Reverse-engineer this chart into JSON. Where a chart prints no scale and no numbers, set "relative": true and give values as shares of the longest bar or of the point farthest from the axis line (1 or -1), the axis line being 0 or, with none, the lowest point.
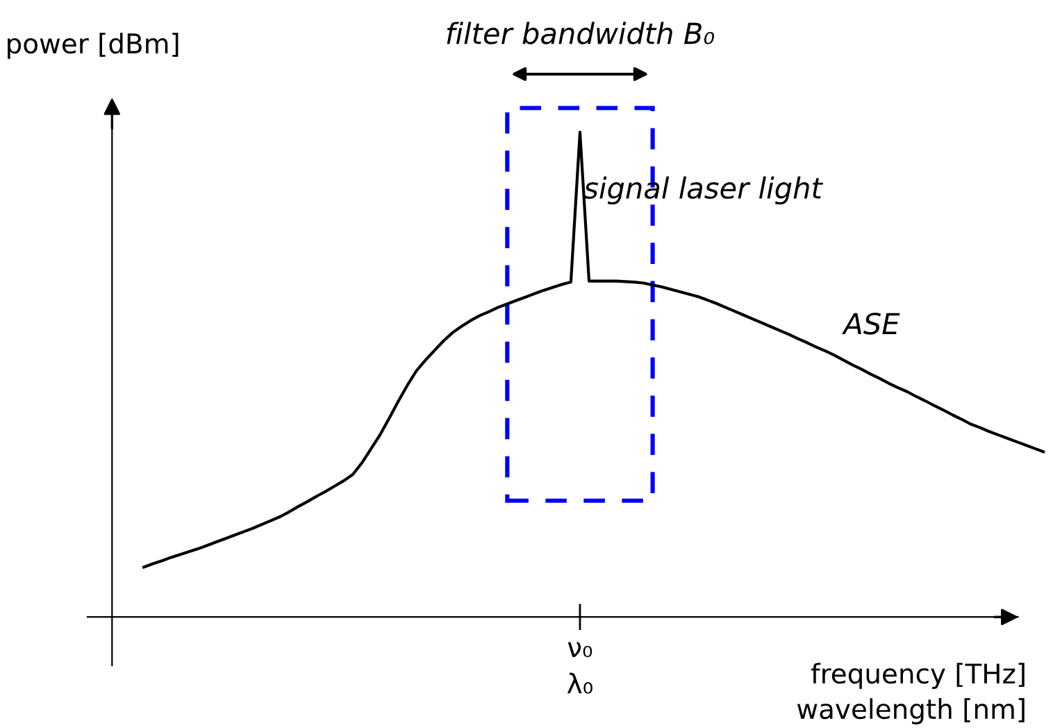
{
  "chart_data": {
    "type": "line",
    "relative": true,
    "xlabel": "frequency [THz]\nwavelength [nm]",
    "ylabel": "power [dBm]",
    "categories": [
      null,
      null,
      null,
      null,
      null,
      null,
      null,
      null,
      null,
      null,
      null,
      null,
      null,
      null,
      null,
      null,
      null,
      null,
      null,
      null,
      null,
      null,
      null,
      null,
      null,
      null,
      null,
      null,
      null,
      null,
      null,
      null,
      null,
      null,
      null,
      null,
      null,
      null,
      null,
      null,
      null,
      null,
      null,
      null,
      null,
      null,
      null,
      null,
      null,
      null,
      null,
      null,
      null,
      null,
      null,
      null,
      null,
      null,
      null,
      null,
      null,
      null,
      null,
      null,
      null,
      null,
      null,
      null,
      null,
      null,
      null,
      null,
      null,
      null,
      null,
      null,
      null,
      null,
      null,
      null,
      null,
      null,
      null,
      null,
      null,
      null,
      null,
      null,
      null,
      null,
      null,
      null,
      null,
      null,
      null,
      null,
      null,
      null,
      null,
      null
    ],
    "series": [
      {
        "color": "#000000",
        "values": [
          0.103,
          0.11,
          0.116,
          0.123,
          0.129,
          0.135,
          0.141,
          0.148,
          0.155,
          0.162,
          0.169,
          0.176,
          0.183,
          0.191,
          0.199,
          0.207,
          0.217,
          0.228,
          0.238,
          0.249,
          0.259,
          0.27,
          0.281,
          0.294,
          0.318,
          0.347,
          0.376,
          0.41,
          0.445,
          0.478,
          0.508,
          0.53,
          0.55,
          0.57,
          0.587,
          0.6,
          0.612,
          0.622,
          0.63,
          0.639,
          0.646,
          0.653,
          0.66,
          0.667,
          0.674,
          0.68,
          0.686,
          0.691,
          1.0,
          0.693,
          0.693,
          0.693,
          0.693,
          0.692,
          0.691,
          0.689,
          0.685,
          0.681,
          0.676,
          0.671,
          0.666,
          0.661,
          0.654,
          0.647,
          0.639,
          0.631,
          0.623,
          0.615,
          0.607,
          0.599,
          0.591,
          0.583,
          0.574,
          0.566,
          0.557,
          0.549,
          0.54,
          0.53,
          0.52,
          0.511,
          0.501,
          0.492,
          0.482,
          0.473,
          0.465,
          0.455,
          0.446,
          0.436,
          0.427,
          0.417,
          0.408,
          0.398,
          0.391,
          0.383,
          0.376,
          0.369,
          0.362,
          0.355,
          0.348,
          0.341
        ]
      }
    ],
    "annotations": [
      "filter bandwidth B₀",
      "signal laser light",
      "ASE",
      "ν₀\nλ₀"
    ]
  }
}
